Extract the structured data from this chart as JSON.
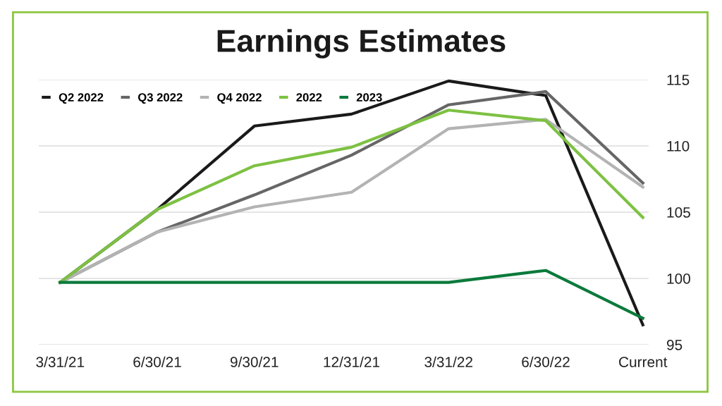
{
  "chart_data": {
    "type": "line",
    "title": "Earnings Estimates",
    "categories": [
      "3/31/21",
      "6/30/21",
      "9/30/21",
      "12/31/21",
      "3/31/22",
      "6/30/22",
      "Current"
    ],
    "series": [
      {
        "name": "Q2 2022",
        "color": "#1a1a1a",
        "values": [
          99.7,
          105.2,
          111.5,
          112.4,
          114.9,
          113.8,
          96.5
        ]
      },
      {
        "name": "Q3 2022",
        "color": "#666666",
        "values": [
          99.7,
          103.5,
          106.3,
          109.3,
          113.1,
          114.1,
          107.2
        ]
      },
      {
        "name": "Q4 2022",
        "color": "#b3b3b3",
        "values": [
          99.7,
          103.5,
          105.4,
          106.5,
          111.3,
          112.0,
          106.9
        ]
      },
      {
        "name": "2022",
        "color": "#7dc142",
        "values": [
          99.7,
          105.2,
          108.5,
          109.9,
          112.7,
          111.9,
          104.6
        ]
      },
      {
        "name": "2023",
        "color": "#0b7a3b",
        "values": [
          99.7,
          99.7,
          99.7,
          99.7,
          99.7,
          100.6,
          97.0
        ]
      }
    ],
    "ylim": [
      95,
      115
    ],
    "yticks": [
      95,
      100,
      105,
      110,
      115
    ],
    "grid": "y",
    "legend": "top left",
    "marker": "none",
    "line_style": "solid"
  }
}
